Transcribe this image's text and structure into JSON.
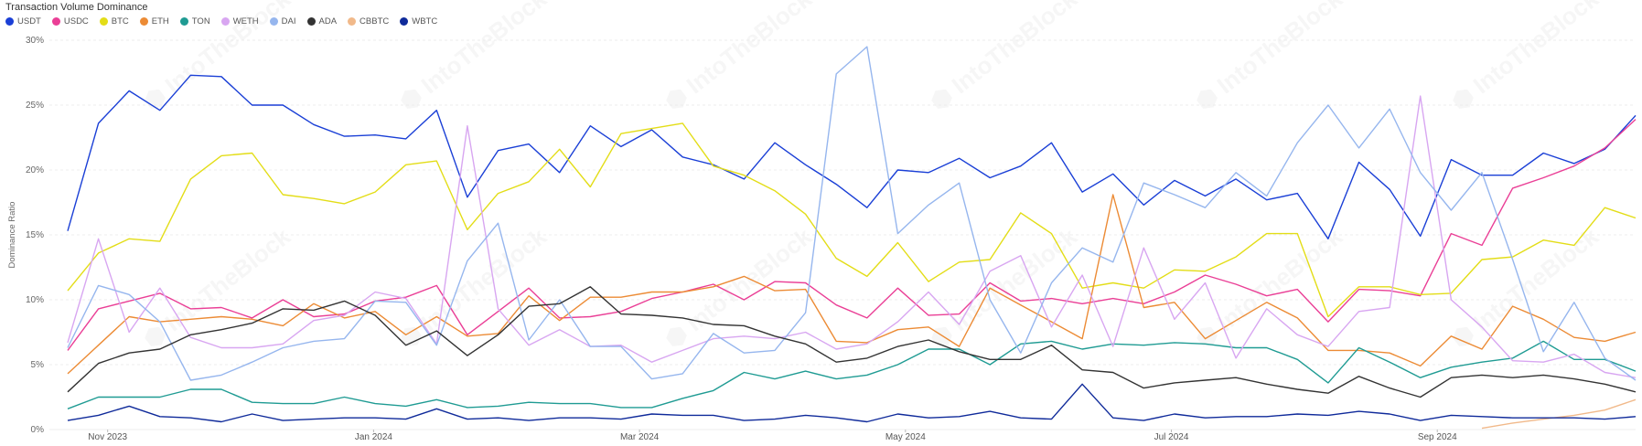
{
  "chart_data": {
    "type": "line",
    "title": "Transaction Volume Dominance",
    "ylabel": "Dominance Ratio",
    "ylim": [
      0,
      30
    ],
    "yticks": [
      "0%",
      "5%",
      "10%",
      "15%",
      "20%",
      "25%",
      "30%"
    ],
    "xticks": [
      "Nov 2023",
      "Jan 2024",
      "Mar 2024",
      "May 2024",
      "Jul 2024",
      "Sep 2024"
    ],
    "grid": true,
    "legend": "top-left",
    "series": [
      {
        "name": "USDT",
        "color": "#1a3fd6",
        "values": [
          15.3,
          23.6,
          26.1,
          24.6,
          27.3,
          27.2,
          25,
          25,
          23.5,
          22.6,
          22.7,
          22.4,
          24.6,
          17.9,
          21.5,
          22,
          19.8,
          23.4,
          21.8,
          23.1,
          21,
          20.4,
          19.3,
          22.1,
          20.4,
          18.9,
          17.1,
          20,
          19.8,
          20.9,
          19.4,
          20.3,
          22.1,
          18.3,
          19.7,
          17.3,
          19.2,
          18,
          19.3,
          17.7,
          18.2,
          14.7,
          20.6,
          18.5,
          14.9,
          20.8,
          19.6,
          19.6,
          21.3,
          20.5,
          21.6,
          24.2
        ]
      },
      {
        "name": "USDC",
        "color": "#ea3f96",
        "values": [
          6.1,
          9.3,
          9.9,
          10.5,
          9.3,
          9.4,
          8.6,
          10,
          8.7,
          8.9,
          9.9,
          10.2,
          11.1,
          7.3,
          9.1,
          10.9,
          8.6,
          8.7,
          9.1,
          10.1,
          10.6,
          11.2,
          10,
          11.4,
          11.3,
          9.6,
          8.6,
          10.9,
          8.8,
          8.9,
          11.3,
          9.9,
          10.1,
          9.7,
          10.1,
          9.7,
          10.6,
          11.9,
          11.2,
          10.3,
          10.8,
          8.3,
          10.8,
          10.7,
          10.3,
          15.1,
          14.2,
          18.6,
          19.4,
          20.3,
          21.7,
          23.9
        ]
      },
      {
        "name": "BTC",
        "color": "#e3dd17",
        "values": [
          10.7,
          13.6,
          14.7,
          14.5,
          19.3,
          21.1,
          21.3,
          18.1,
          17.8,
          17.4,
          18.3,
          20.4,
          20.7,
          15.4,
          18.2,
          19.1,
          21.6,
          18.7,
          22.8,
          23.2,
          23.6,
          20.3,
          19.6,
          18.4,
          16.6,
          13.2,
          11.8,
          14.4,
          11.4,
          12.9,
          13.1,
          16.7,
          15.1,
          10.9,
          11.3,
          10.9,
          12.3,
          12.2,
          13.3,
          15.1,
          15.1,
          8.7,
          11,
          11,
          10.4,
          10.5,
          13.1,
          13.3,
          14.6,
          14.2,
          17.1,
          16.3
        ]
      },
      {
        "name": "ETH",
        "color": "#ec8b35",
        "values": [
          4.3,
          6.5,
          8.7,
          8.3,
          8.5,
          8.7,
          8.5,
          8,
          9.7,
          8.6,
          9.1,
          7.3,
          8.7,
          7.2,
          7.4,
          10.3,
          8.4,
          10.2,
          10.2,
          10.6,
          10.6,
          11,
          11.8,
          10.7,
          10.8,
          6.8,
          6.7,
          7.7,
          7.9,
          6.4,
          10.9,
          9.6,
          8.3,
          7,
          18.1,
          9.4,
          9.8,
          7,
          8.4,
          9.8,
          8.6,
          6.1,
          6.1,
          5.9,
          4.9,
          7.2,
          6.2,
          9.5,
          8.5,
          7.1,
          6.8,
          7.5
        ]
      },
      {
        "name": "TON",
        "color": "#1f9b93",
        "values": [
          1.6,
          2.5,
          2.5,
          2.5,
          3.1,
          3.1,
          2.1,
          2,
          2,
          2.5,
          2,
          1.8,
          2.3,
          1.7,
          1.8,
          2.1,
          2,
          2,
          1.7,
          1.7,
          2.4,
          3,
          4.4,
          3.9,
          4.5,
          3.9,
          4.2,
          5,
          6.2,
          6.2,
          5,
          6.6,
          6.8,
          6.2,
          6.6,
          6.5,
          6.7,
          6.6,
          6.3,
          6.3,
          5.4,
          3.6,
          6.3,
          5.2,
          4,
          4.8,
          5.2,
          5.5,
          6.8,
          5.4,
          5.4,
          4.5
        ]
      },
      {
        "name": "WETH",
        "color": "#d8a6f1",
        "values": [
          6.7,
          14.7,
          7.5,
          10.9,
          7.1,
          6.3,
          6.3,
          6.6,
          8.4,
          8.8,
          10.6,
          10.1,
          6.6,
          23.4,
          9.3,
          6.5,
          7.7,
          6.4,
          6.5,
          5.2,
          6.1,
          7,
          7.2,
          7,
          7.5,
          6.2,
          6.6,
          8.3,
          10.6,
          8.1,
          12.2,
          13.4,
          7.9,
          11.9,
          6.4,
          14,
          8.5,
          11.3,
          5.5,
          9.3,
          7.3,
          6.4,
          9.1,
          9.4,
          25.7,
          10,
          7.9,
          5.3,
          5.2,
          5.8,
          4.4,
          4
        ]
      },
      {
        "name": "DAI",
        "color": "#96b6ee",
        "values": [
          6.3,
          11.1,
          10.4,
          8.3,
          3.8,
          4.2,
          5.2,
          6.3,
          6.8,
          7,
          9.9,
          9.8,
          6.5,
          13,
          15.9,
          6.9,
          10,
          6.4,
          6.4,
          3.9,
          4.3,
          7.4,
          5.9,
          6.1,
          9,
          27.4,
          29.5,
          15.1,
          17.3,
          19,
          10,
          5.9,
          11.3,
          14,
          12.9,
          19,
          18.1,
          17.1,
          19.8,
          18,
          22.1,
          25,
          21.7,
          24.7,
          19.8,
          16.9,
          19.8,
          13.1,
          6,
          9.8,
          5.5,
          3.8
        ]
      },
      {
        "name": "ADA",
        "color": "#333333",
        "values": [
          2.9,
          5.1,
          5.9,
          6.2,
          7.3,
          7.7,
          8.2,
          9.3,
          9.2,
          9.9,
          8.8,
          6.5,
          7.6,
          5.7,
          7.3,
          9.5,
          9.7,
          11,
          8.9,
          8.8,
          8.6,
          8.1,
          8,
          7.2,
          6.6,
          5.2,
          5.5,
          6.4,
          6.9,
          6,
          5.4,
          5.4,
          6.5,
          4.6,
          4.4,
          3.2,
          3.6,
          3.8,
          4,
          3.5,
          3.1,
          2.8,
          4.1,
          3.2,
          2.5,
          4,
          4.2,
          4,
          4.2,
          3.9,
          3.5,
          2.9
        ]
      },
      {
        "name": "CBBTC",
        "color": "#f1b98a",
        "values": [
          null,
          null,
          null,
          null,
          null,
          null,
          null,
          null,
          null,
          null,
          null,
          null,
          null,
          null,
          null,
          null,
          null,
          null,
          null,
          null,
          null,
          null,
          null,
          null,
          null,
          null,
          null,
          null,
          null,
          null,
          null,
          null,
          null,
          null,
          null,
          null,
          null,
          null,
          null,
          null,
          null,
          null,
          null,
          null,
          null,
          null,
          0.1,
          0.5,
          0.8,
          1.1,
          1.5,
          2.3
        ]
      },
      {
        "name": "WBTC",
        "color": "#0f2a9a",
        "values": [
          0.7,
          1.1,
          1.8,
          1,
          0.9,
          0.6,
          1.2,
          0.7,
          0.8,
          0.9,
          0.9,
          0.8,
          1.6,
          0.8,
          0.9,
          0.7,
          0.9,
          0.9,
          0.8,
          1.2,
          1.1,
          1.1,
          0.7,
          0.8,
          1.1,
          0.9,
          0.6,
          1.2,
          0.9,
          1,
          1.4,
          0.9,
          0.8,
          3.5,
          0.9,
          0.7,
          1.2,
          0.9,
          1,
          1,
          1.2,
          1.1,
          1.4,
          1.2,
          0.7,
          1.1,
          1,
          0.9,
          0.9,
          0.9,
          0.8,
          1
        ]
      }
    ]
  }
}
